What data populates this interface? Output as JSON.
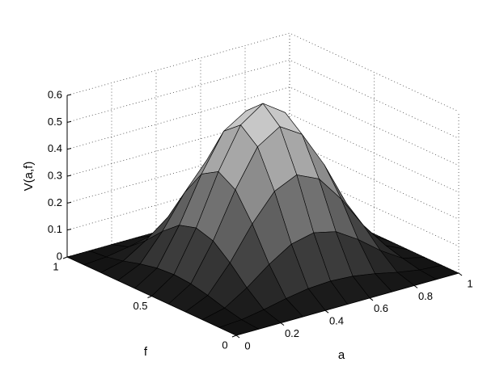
{
  "chart_data": {
    "type": "surface",
    "xlabel": "a",
    "ylabel": "f",
    "zlabel": "V(a,f)",
    "x": [
      0,
      0.1,
      0.2,
      0.3,
      0.4,
      0.5,
      0.6,
      0.7,
      0.8,
      0.9,
      1
    ],
    "y": [
      0,
      0.1,
      0.2,
      0.3,
      0.4,
      0.5,
      0.6,
      0.7,
      0.8,
      0.9,
      1
    ],
    "z": [
      [
        0,
        0,
        0,
        0,
        0,
        0,
        0,
        0,
        0,
        0,
        0
      ],
      [
        0,
        0.006,
        0.02,
        0.038,
        0.052,
        0.057,
        0.052,
        0.038,
        0.02,
        0.006,
        0
      ],
      [
        0,
        0.02,
        0.072,
        0.136,
        0.188,
        0.207,
        0.188,
        0.136,
        0.072,
        0.02,
        0
      ],
      [
        0,
        0.038,
        0.136,
        0.257,
        0.355,
        0.393,
        0.355,
        0.257,
        0.136,
        0.038,
        0
      ],
      [
        0,
        0.052,
        0.188,
        0.355,
        0.491,
        0.543,
        0.491,
        0.355,
        0.188,
        0.052,
        0
      ],
      [
        0,
        0.057,
        0.207,
        0.393,
        0.543,
        0.6,
        0.543,
        0.393,
        0.207,
        0.057,
        0
      ],
      [
        0,
        0.052,
        0.188,
        0.355,
        0.491,
        0.543,
        0.491,
        0.355,
        0.188,
        0.052,
        0
      ],
      [
        0,
        0.038,
        0.136,
        0.257,
        0.355,
        0.393,
        0.355,
        0.257,
        0.136,
        0.038,
        0
      ],
      [
        0,
        0.02,
        0.072,
        0.136,
        0.188,
        0.207,
        0.188,
        0.136,
        0.072,
        0.02,
        0
      ],
      [
        0,
        0.006,
        0.02,
        0.038,
        0.052,
        0.057,
        0.052,
        0.038,
        0.02,
        0.006,
        0
      ],
      [
        0,
        0,
        0,
        0,
        0,
        0,
        0,
        0,
        0,
        0,
        0
      ]
    ],
    "xlim": [
      0,
      1
    ],
    "xticks": [
      0,
      0.2,
      0.4,
      0.6,
      0.8,
      1
    ],
    "ylim": [
      0,
      1
    ],
    "yticks": [
      0,
      0.5,
      1
    ],
    "zlim": [
      0,
      0.6
    ],
    "zticks": [
      0,
      0.1,
      0.2,
      0.3,
      0.4,
      0.5,
      0.6
    ],
    "grid": true,
    "colormap": "gray",
    "edge_color": "#000000"
  }
}
